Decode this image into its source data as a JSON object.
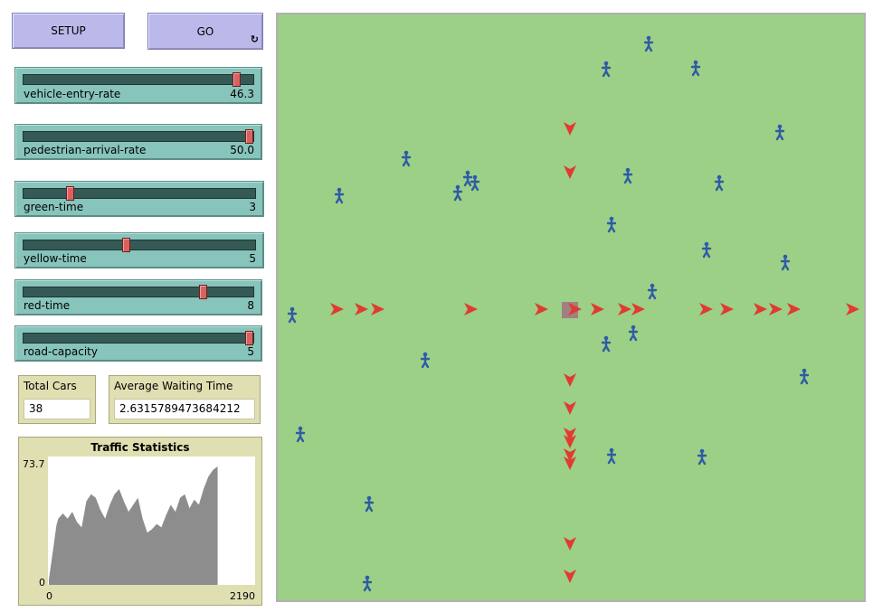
{
  "buttons": {
    "setup": "SETUP",
    "go": "GO",
    "go_forever_icon": "↻"
  },
  "sliders": [
    {
      "name": "vehicle-entry-rate",
      "value": "46.3",
      "fraction": 0.925
    },
    {
      "name": "pedestrian-arrival-rate",
      "value": "50.0",
      "fraction": 1.0
    },
    {
      "name": "green-time",
      "value": "3",
      "fraction": 0.2
    },
    {
      "name": "yellow-time",
      "value": "5",
      "fraction": 0.44
    },
    {
      "name": "red-time",
      "value": "8",
      "fraction": 0.78
    },
    {
      "name": "road-capacity",
      "value": "5",
      "fraction": 1.0
    }
  ],
  "monitors": {
    "total_cars": {
      "label": "Total Cars",
      "value": "38"
    },
    "avg_wait": {
      "label": "Average Waiting Time",
      "value": "2.6315789473684212"
    }
  },
  "plot": {
    "title": "Traffic Statistics",
    "ymax_label": "73.7",
    "ymin_label": "0",
    "xmin_label": "0",
    "xmax_label": "2190"
  },
  "chart_data": {
    "type": "area",
    "title": "Traffic Statistics",
    "xlim": [
      0,
      2190
    ],
    "ylim": [
      0,
      73.7
    ],
    "x": [
      0,
      50,
      80,
      100,
      150,
      200,
      250,
      300,
      350,
      400,
      450,
      500,
      550,
      600,
      650,
      700,
      750,
      800,
      850,
      900,
      950,
      1000,
      1050,
      1100,
      1150,
      1200,
      1250,
      1300,
      1350,
      1400,
      1450,
      1500,
      1550,
      1600,
      1650,
      1700,
      1750,
      1800
    ],
    "y": [
      3,
      22,
      34,
      38,
      41,
      38,
      42,
      36,
      33,
      48,
      52,
      50,
      43,
      38,
      46,
      52,
      55,
      48,
      42,
      46,
      50,
      38,
      30,
      32,
      35,
      33,
      40,
      46,
      42,
      50,
      52,
      44,
      49,
      46,
      55,
      62,
      66,
      68
    ]
  },
  "colors": {
    "world_bg": "#9bd086",
    "car": "#e13a31",
    "person": "#2f5ba6",
    "stop_patch": "#a08080",
    "plot_fill": "#8d8d8d"
  },
  "world": {
    "cars_right": [
      372,
      399,
      417,
      520,
      598,
      635,
      660,
      690,
      705,
      780,
      803,
      840,
      857,
      877,
      942
    ],
    "cars_down": [
      142,
      190,
      420,
      451,
      480,
      488,
      503,
      512,
      601,
      637
    ],
    "people": [
      [
        717,
        48
      ],
      [
        670,
        76
      ],
      [
        769,
        75
      ],
      [
        862,
        146
      ],
      [
        449,
        175
      ],
      [
        375,
        216
      ],
      [
        517,
        197
      ],
      [
        525,
        202
      ],
      [
        506,
        213
      ],
      [
        694,
        194
      ],
      [
        795,
        202
      ],
      [
        676,
        248
      ],
      [
        781,
        276
      ],
      [
        868,
        290
      ],
      [
        721,
        322
      ],
      [
        323,
        348
      ],
      [
        700,
        368
      ],
      [
        670,
        380
      ],
      [
        470,
        398
      ],
      [
        889,
        416
      ],
      [
        332,
        480
      ],
      [
        676,
        504
      ],
      [
        776,
        505
      ],
      [
        408,
        557
      ],
      [
        406,
        645
      ]
    ]
  }
}
